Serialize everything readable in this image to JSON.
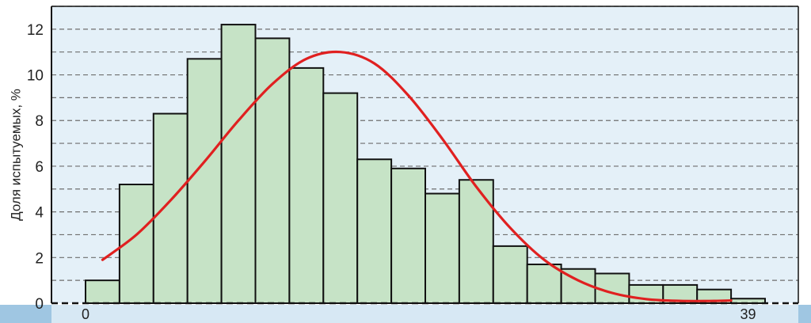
{
  "chart_data": {
    "type": "bar",
    "ylabel": "Доля испытуемых, %",
    "xlabel": "",
    "ylim": [
      0,
      13
    ],
    "yticks": [
      "0",
      "2",
      "4",
      "6",
      "8",
      "10",
      "12"
    ],
    "x_tick_labels": [
      {
        "label": "0",
        "bin": 0
      },
      {
        "label": "39",
        "bin": 19.5
      }
    ],
    "grid": "horizontal-dashed",
    "bar_color": "#c6e3c6",
    "curve_color": "#e02020",
    "background_color": "#e4f0f8",
    "values": [
      1.0,
      5.2,
      8.3,
      10.7,
      12.2,
      11.6,
      10.3,
      9.2,
      6.3,
      5.9,
      4.8,
      5.4,
      2.5,
      1.7,
      1.5,
      1.3,
      0.8,
      0.8,
      0.6,
      0.2
    ],
    "fit_curve": {
      "name": "",
      "points": [
        [
          0,
          1.9
        ],
        [
          1,
          3.0
        ],
        [
          2,
          4.5
        ],
        [
          3,
          6.2
        ],
        [
          4,
          8.0
        ],
        [
          5,
          9.6
        ],
        [
          6,
          10.7
        ],
        [
          7,
          11.0
        ],
        [
          8,
          10.5
        ],
        [
          9,
          9.1
        ],
        [
          10,
          7.2
        ],
        [
          11,
          5.1
        ],
        [
          12,
          3.3
        ],
        [
          13,
          1.9
        ],
        [
          14,
          1.0
        ],
        [
          15,
          0.45
        ],
        [
          16,
          0.18
        ],
        [
          17,
          0.1
        ],
        [
          18,
          0.1
        ],
        [
          18.5,
          0.12
        ]
      ]
    }
  }
}
